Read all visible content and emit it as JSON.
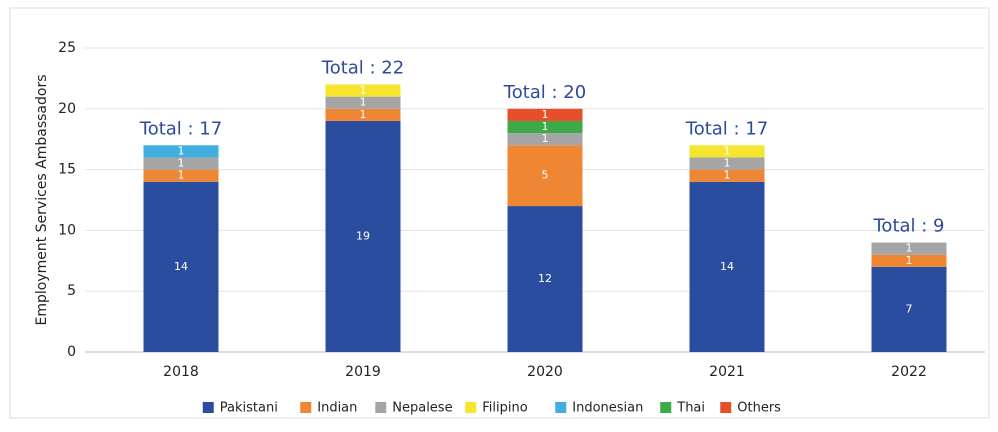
{
  "chart_data": {
    "type": "stacked_bar",
    "y_label": "Employment Services Ambassadors",
    "categories": [
      "2018",
      "2019",
      "2020",
      "2021",
      "2022"
    ],
    "series": [
      {
        "name": "Pakistani",
        "color": "#2b4da0",
        "values": [
          14,
          19,
          12,
          14,
          7
        ]
      },
      {
        "name": "Indian",
        "color": "#ee8633",
        "values": [
          1,
          1,
          5,
          1,
          1
        ]
      },
      {
        "name": "Nepalese",
        "color": "#a5a5a5",
        "values": [
          1,
          1,
          1,
          1,
          1
        ]
      },
      {
        "name": "Filipino",
        "color": "#f5e52f",
        "values": [
          null,
          1,
          null,
          1,
          null
        ]
      },
      {
        "name": "Indonesian",
        "color": "#41aee0",
        "values": [
          1,
          null,
          null,
          null,
          null
        ]
      },
      {
        "name": "Thai",
        "color": "#3daa47",
        "values": [
          null,
          null,
          1,
          null,
          null
        ]
      },
      {
        "name": "Others",
        "color": "#e5502a",
        "values": [
          null,
          null,
          1,
          null,
          null
        ]
      }
    ],
    "annotations": [
      "Total : 17",
      "Total : 22",
      "Total : 20",
      "Total : 17",
      "Total : 9"
    ],
    "ylim": [
      0,
      25
    ],
    "yticks": [
      0,
      5,
      10,
      15,
      20,
      25
    ],
    "grid": true,
    "legend": "bottom"
  }
}
